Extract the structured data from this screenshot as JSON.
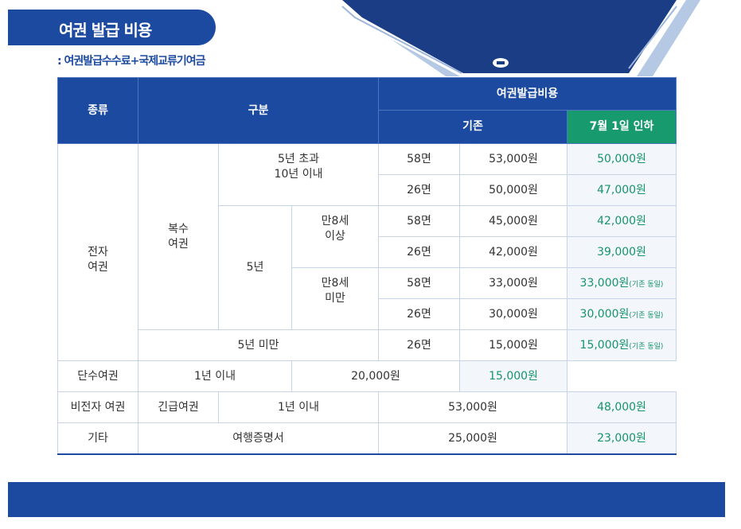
{
  "title": "여권 발급 비용",
  "subtitle": ": 여권발급수수료+국제교류기여금",
  "header": {
    "type": "종류",
    "category": "구분",
    "cost": "여권발급비용",
    "current": "기존",
    "new": "7월 1일 인하"
  },
  "rows": {
    "electronic": "전자\n여권",
    "multi": "복수\n여권",
    "over5": "5년 초과\n10년 이내",
    "five": "5년",
    "age8up": "만8세\n이상",
    "age8down": "만8세\n미만",
    "under5": "5년 미만",
    "single": "단수여권",
    "within1": "1년 이내",
    "nonelectronic": "비전자 여권",
    "urgent": "긴급여권",
    "within1b": "1년 이내",
    "etc": "기타",
    "travelcert": "여행증명서"
  },
  "prices": [
    {
      "pages": "58면",
      "old": "53,000원",
      "new": "50,000원",
      "note": ""
    },
    {
      "pages": "26면",
      "old": "50,000원",
      "new": "47,000원",
      "note": ""
    },
    {
      "pages": "58면",
      "old": "45,000원",
      "new": "42,000원",
      "note": ""
    },
    {
      "pages": "26면",
      "old": "42,000원",
      "new": "39,000원",
      "note": ""
    },
    {
      "pages": "58면",
      "old": "33,000원",
      "new": "33,000원",
      "note": "(기존 동일)"
    },
    {
      "pages": "26면",
      "old": "30,000원",
      "new": "30,000원",
      "note": "(기존 동일)"
    },
    {
      "pages": "26면",
      "old": "15,000원",
      "new": "15,000원",
      "note": "(기존 동일)"
    },
    {
      "pages": "",
      "old": "20,000원",
      "new": "15,000원",
      "note": ""
    },
    {
      "pages": "",
      "old": "53,000원",
      "new": "48,000원",
      "note": ""
    },
    {
      "pages": "",
      "old": "25,000원",
      "new": "23,000원",
      "note": ""
    }
  ],
  "colors": {
    "primary": "#1b4aa0",
    "accent": "#179a6d",
    "border": "#c7d4e8"
  }
}
